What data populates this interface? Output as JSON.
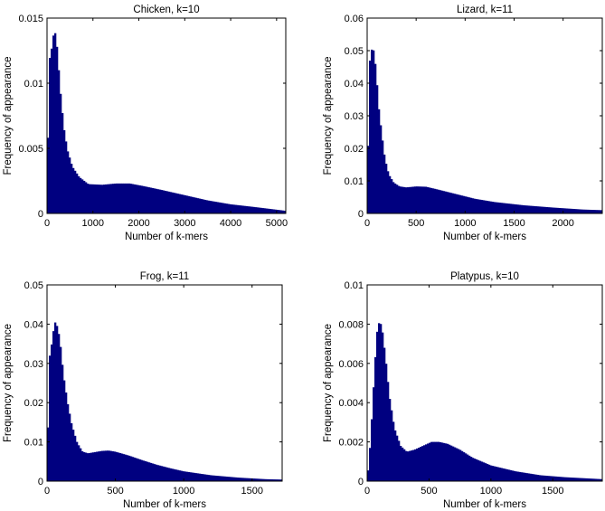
{
  "chart_data": [
    {
      "type": "bar",
      "title": "Chicken, k=10",
      "xlabel": "Number of k-mers",
      "ylabel": "Frequency of appearance",
      "xlim": [
        0,
        5200
      ],
      "ylim": [
        0,
        0.015
      ],
      "xticks": [
        0,
        1000,
        2000,
        3000,
        4000,
        5000
      ],
      "yticks": [
        0,
        0.005,
        0.01,
        0.015
      ],
      "ytick_labels": [
        "0",
        "0.005",
        "0.01",
        "0.015"
      ],
      "bar_color": "#000080",
      "grid": false,
      "x": [
        0,
        40,
        80,
        120,
        160,
        200,
        240,
        280,
        320,
        380,
        450,
        550,
        700,
        900,
        1200,
        1500,
        1800,
        2100,
        2500,
        3000,
        3500,
        4000,
        4500,
        5200
      ],
      "y": [
        0.0,
        0.0118,
        0.0121,
        0.0133,
        0.0141,
        0.0135,
        0.0118,
        0.0098,
        0.0082,
        0.0062,
        0.0048,
        0.0036,
        0.0028,
        0.00225,
        0.0022,
        0.0023,
        0.0023,
        0.0021,
        0.0018,
        0.0014,
        0.001,
        0.0007,
        0.0005,
        0.0002
      ]
    },
    {
      "type": "bar",
      "title": "Lizard, k=11",
      "xlabel": "Number of k-mers",
      "ylabel": "Frequency of appearance",
      "xlim": [
        0,
        2400
      ],
      "ylim": [
        0,
        0.06
      ],
      "xticks": [
        0,
        500,
        1000,
        1500,
        2000
      ],
      "yticks": [
        0,
        0.01,
        0.02,
        0.03,
        0.04,
        0.05,
        0.06
      ],
      "ytick_labels": [
        "0",
        "0.01",
        "0.02",
        "0.03",
        "0.04",
        "0.05",
        "0.06"
      ],
      "bar_color": "#000080",
      "grid": false,
      "x": [
        0,
        20,
        40,
        60,
        80,
        100,
        120,
        150,
        180,
        220,
        270,
        330,
        400,
        500,
        600,
        700,
        900,
        1100,
        1300,
        1600,
        1900,
        2200,
        2400
      ],
      "y": [
        0.0,
        0.045,
        0.05,
        0.051,
        0.047,
        0.04,
        0.032,
        0.024,
        0.017,
        0.012,
        0.0095,
        0.0083,
        0.008,
        0.0083,
        0.0082,
        0.0075,
        0.006,
        0.0045,
        0.0035,
        0.0025,
        0.0018,
        0.0012,
        0.001
      ]
    },
    {
      "type": "bar",
      "title": "Frog, k=11",
      "xlabel": "Number of k-mers",
      "ylabel": "Frequency of appearance",
      "xlim": [
        0,
        1720
      ],
      "ylim": [
        0,
        0.05
      ],
      "xticks": [
        0,
        500,
        1000,
        1500
      ],
      "yticks": [
        0,
        0.01,
        0.02,
        0.03,
        0.04,
        0.05
      ],
      "ytick_labels": [
        "0",
        "0.01",
        "0.02",
        "0.03",
        "0.04",
        "0.05"
      ],
      "bar_color": "#000080",
      "grid": false,
      "x": [
        0,
        15,
        30,
        45,
        60,
        80,
        100,
        120,
        150,
        180,
        220,
        260,
        300,
        350,
        400,
        450,
        500,
        600,
        700,
        800,
        900,
        1000,
        1200,
        1400,
        1600,
        1720
      ],
      "y": [
        0.0,
        0.031,
        0.034,
        0.038,
        0.0405,
        0.039,
        0.034,
        0.027,
        0.02,
        0.0145,
        0.0098,
        0.0075,
        0.0071,
        0.0074,
        0.0077,
        0.0078,
        0.0075,
        0.0065,
        0.0053,
        0.0042,
        0.0033,
        0.0025,
        0.0015,
        0.0009,
        0.0005,
        0.0004
      ]
    },
    {
      "type": "bar",
      "title": "Platypus, k=10",
      "xlabel": "Number of k-mers",
      "ylabel": "Frequency of appearance",
      "xlim": [
        0,
        1900
      ],
      "ylim": [
        0,
        0.01
      ],
      "xticks": [
        0,
        500,
        1000,
        1500
      ],
      "yticks": [
        0,
        0.002,
        0.004,
        0.006,
        0.008,
        0.01
      ],
      "ytick_labels": [
        "0",
        "0.002",
        "0.004",
        "0.006",
        "0.008",
        "0.01"
      ],
      "bar_color": "#000080",
      "grid": false,
      "x": [
        0,
        20,
        40,
        60,
        80,
        100,
        120,
        150,
        180,
        220,
        270,
        320,
        380,
        450,
        520,
        580,
        650,
        750,
        850,
        1000,
        1200,
        1400,
        1600,
        1900
      ],
      "y": [
        0.0,
        0.0015,
        0.0035,
        0.0058,
        0.0076,
        0.0082,
        0.0078,
        0.0062,
        0.0043,
        0.0027,
        0.0018,
        0.0015,
        0.0016,
        0.0018,
        0.002,
        0.002,
        0.0019,
        0.0016,
        0.0012,
        0.0008,
        0.0005,
        0.0003,
        0.0002,
        0.0001
      ]
    }
  ]
}
